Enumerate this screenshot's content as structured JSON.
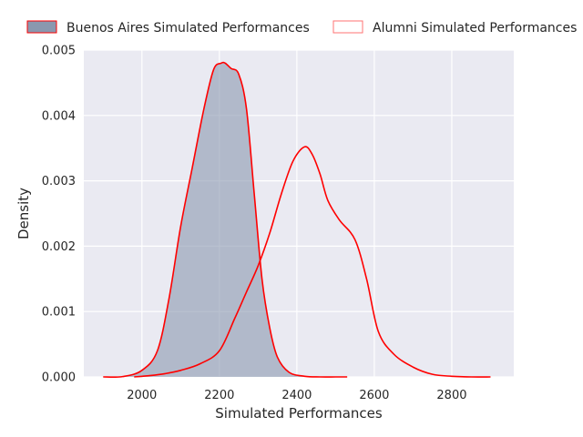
{
  "chart_data": {
    "type": "area",
    "title": "",
    "xlabel": "Simulated Performances",
    "ylabel": "Density",
    "xlim": [
      1850,
      2960
    ],
    "ylim": [
      0,
      0.005
    ],
    "x_ticks": [
      2000,
      2200,
      2400,
      2600,
      2800
    ],
    "y_ticks": [
      0.0,
      0.001,
      0.002,
      0.003,
      0.004,
      0.005
    ],
    "x_tick_labels": [
      "2000",
      "2200",
      "2400",
      "2600",
      "2800"
    ],
    "y_tick_labels": [
      "0.000",
      "0.001",
      "0.002",
      "0.003",
      "0.004",
      "0.005"
    ],
    "grid": true,
    "legend_position": "top",
    "colors": {
      "background": "#eaeaf2",
      "grid": "#ffffff",
      "line": "#ff0000",
      "buenos_fill": "#8a98af"
    },
    "series": [
      {
        "name": "Buenos Aires Simulated Performances",
        "style": "filled",
        "x": [
          1900,
          1950,
          2000,
          2040,
          2070,
          2100,
          2130,
          2160,
          2185,
          2205,
          2215,
          2230,
          2250,
          2270,
          2290,
          2310,
          2330,
          2350,
          2380,
          2420,
          2460,
          2500,
          2530
        ],
        "y": [
          0,
          5e-06,
          0.0001,
          0.0004,
          0.0012,
          0.0023,
          0.0032,
          0.0041,
          0.0047,
          0.0048,
          0.0048,
          0.00472,
          0.00463,
          0.0041,
          0.0028,
          0.0015,
          0.00075,
          0.0003,
          7e-05,
          1e-05,
          0,
          0,
          0
        ]
      },
      {
        "name": "Alumni Simulated Performances",
        "style": "outline",
        "x": [
          1980,
          2020,
          2060,
          2100,
          2150,
          2200,
          2240,
          2270,
          2300,
          2330,
          2360,
          2390,
          2420,
          2440,
          2460,
          2480,
          2510,
          2550,
          2580,
          2610,
          2650,
          2700,
          2750,
          2800,
          2850,
          2900
        ],
        "y": [
          0,
          2e-05,
          5e-05,
          0.0001,
          0.0002,
          0.0004,
          0.0009,
          0.0013,
          0.0017,
          0.0022,
          0.0028,
          0.0033,
          0.00352,
          0.0034,
          0.0031,
          0.0027,
          0.0024,
          0.0021,
          0.0015,
          0.0007,
          0.00035,
          0.00015,
          4e-05,
          1e-05,
          0,
          0
        ]
      }
    ]
  }
}
